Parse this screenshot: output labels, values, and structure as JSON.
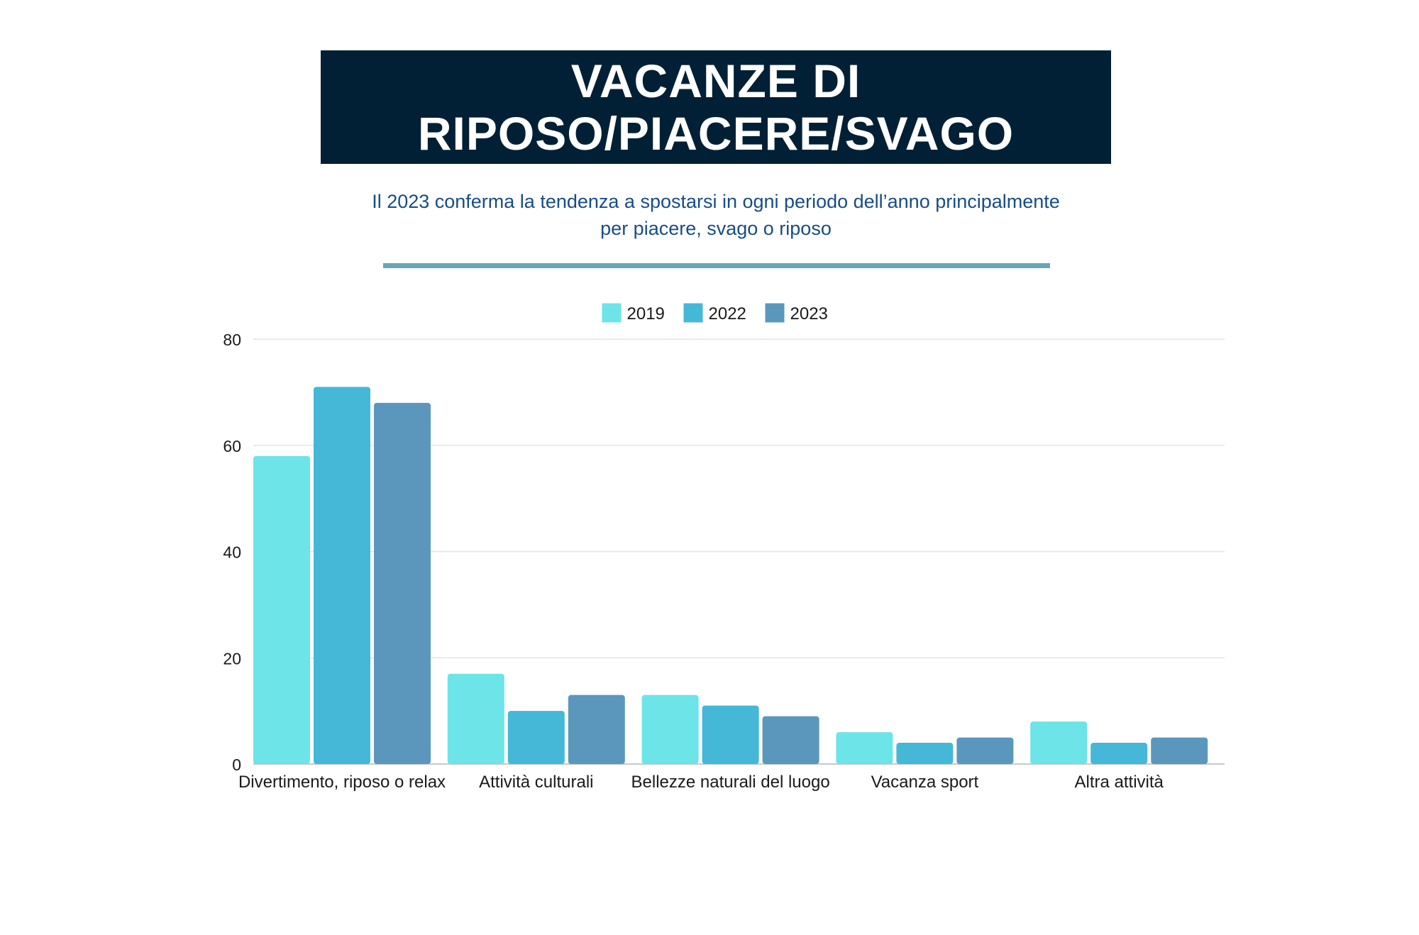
{
  "header": {
    "title": "VACANZE DI\nRIPOSO/PIACERE/SVAGO",
    "subtitle": "Il 2023 conferma la tendenza a spostarsi in ogni periodo dell’anno principalmente\nper piacere, svago o riposo"
  },
  "colors": {
    "title_bg": "#022035",
    "subtitle_text": "#174d86",
    "divider": "#6aa5b8",
    "gridline": "#e4e4e4"
  },
  "chart_data": {
    "type": "bar",
    "categories": [
      "Divertimento, riposo o relax",
      "Attività culturali",
      "Bellezze naturali del luogo",
      "Vacanza sport",
      "Altra attività"
    ],
    "series": [
      {
        "name": "2019",
        "color": "#6ce4e8",
        "values": [
          58,
          17,
          13,
          6,
          8
        ]
      },
      {
        "name": "2022",
        "color": "#45b8d8",
        "values": [
          71,
          10,
          11,
          4,
          4
        ]
      },
      {
        "name": "2023",
        "color": "#5b97bd",
        "values": [
          68,
          13,
          9,
          5,
          5
        ]
      }
    ],
    "ylim": [
      0,
      80
    ],
    "yticks": [
      0,
      20,
      40,
      60,
      80
    ],
    "grid": true,
    "legend": "top-center",
    "xlabel": "",
    "ylabel": ""
  }
}
